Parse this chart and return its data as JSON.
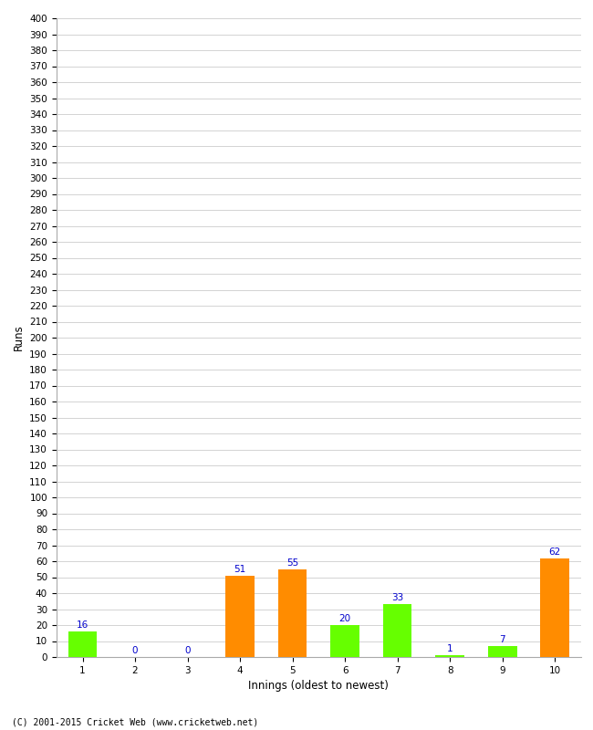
{
  "xlabel": "Innings (oldest to newest)",
  "ylabel": "Runs",
  "categories": [
    1,
    2,
    3,
    4,
    5,
    6,
    7,
    8,
    9,
    10
  ],
  "values": [
    16,
    0,
    0,
    51,
    55,
    20,
    33,
    1,
    7,
    62
  ],
  "bar_colors": [
    "#66ff00",
    "#66ff00",
    "#66ff00",
    "#ff8c00",
    "#ff8c00",
    "#66ff00",
    "#66ff00",
    "#66ff00",
    "#66ff00",
    "#ff8c00"
  ],
  "ylim": [
    0,
    400
  ],
  "ytick_step": 10,
  "label_color": "#0000cc",
  "label_fontsize": 7.5,
  "axis_label_fontsize": 8.5,
  "tick_fontsize": 7.5,
  "footer_text": "(C) 2001-2015 Cricket Web (www.cricketweb.net)",
  "background_color": "#ffffff",
  "grid_color": "#cccccc",
  "bar_width": 0.55
}
